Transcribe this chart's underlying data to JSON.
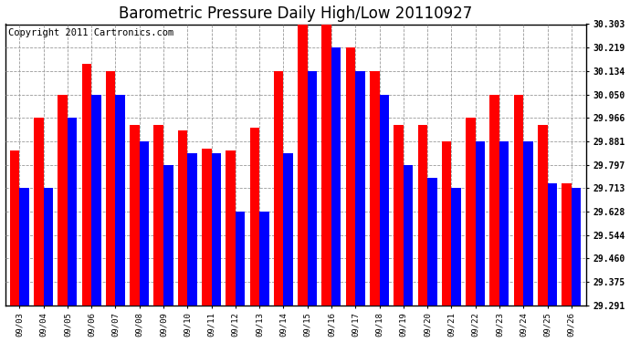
{
  "title": "Barometric Pressure Daily High/Low 20110927",
  "copyright": "Copyright 2011 Cartronics.com",
  "dates": [
    "09/03",
    "09/04",
    "09/05",
    "09/06",
    "09/07",
    "09/08",
    "09/09",
    "09/10",
    "09/11",
    "09/12",
    "09/13",
    "09/14",
    "09/15",
    "09/16",
    "09/17",
    "09/18",
    "09/19",
    "09/20",
    "09/21",
    "09/22",
    "09/23",
    "09/24",
    "09/25",
    "09/26"
  ],
  "highs": [
    29.847,
    29.966,
    30.05,
    30.16,
    30.134,
    29.94,
    29.94,
    29.92,
    29.854,
    29.847,
    29.93,
    30.134,
    30.303,
    30.303,
    30.219,
    30.134,
    29.94,
    29.94,
    29.881,
    29.966,
    30.05,
    30.05,
    29.94,
    29.73
  ],
  "lows": [
    29.713,
    29.713,
    29.966,
    30.05,
    30.05,
    29.881,
    29.797,
    29.84,
    29.84,
    29.628,
    29.628,
    29.84,
    30.134,
    30.219,
    30.134,
    30.05,
    29.797,
    29.75,
    29.713,
    29.881,
    29.881,
    29.881,
    29.73,
    29.713
  ],
  "ylim_min": 29.291,
  "ylim_max": 30.303,
  "yticks": [
    29.291,
    29.375,
    29.46,
    29.544,
    29.628,
    29.713,
    29.797,
    29.881,
    29.966,
    30.05,
    30.134,
    30.219,
    30.303
  ],
  "high_color": "#ff0000",
  "low_color": "#0000ff",
  "bg_color": "#ffffff",
  "plot_bg_color": "#ffffff",
  "grid_color": "#999999",
  "title_fontsize": 12,
  "copyright_fontsize": 7.5
}
